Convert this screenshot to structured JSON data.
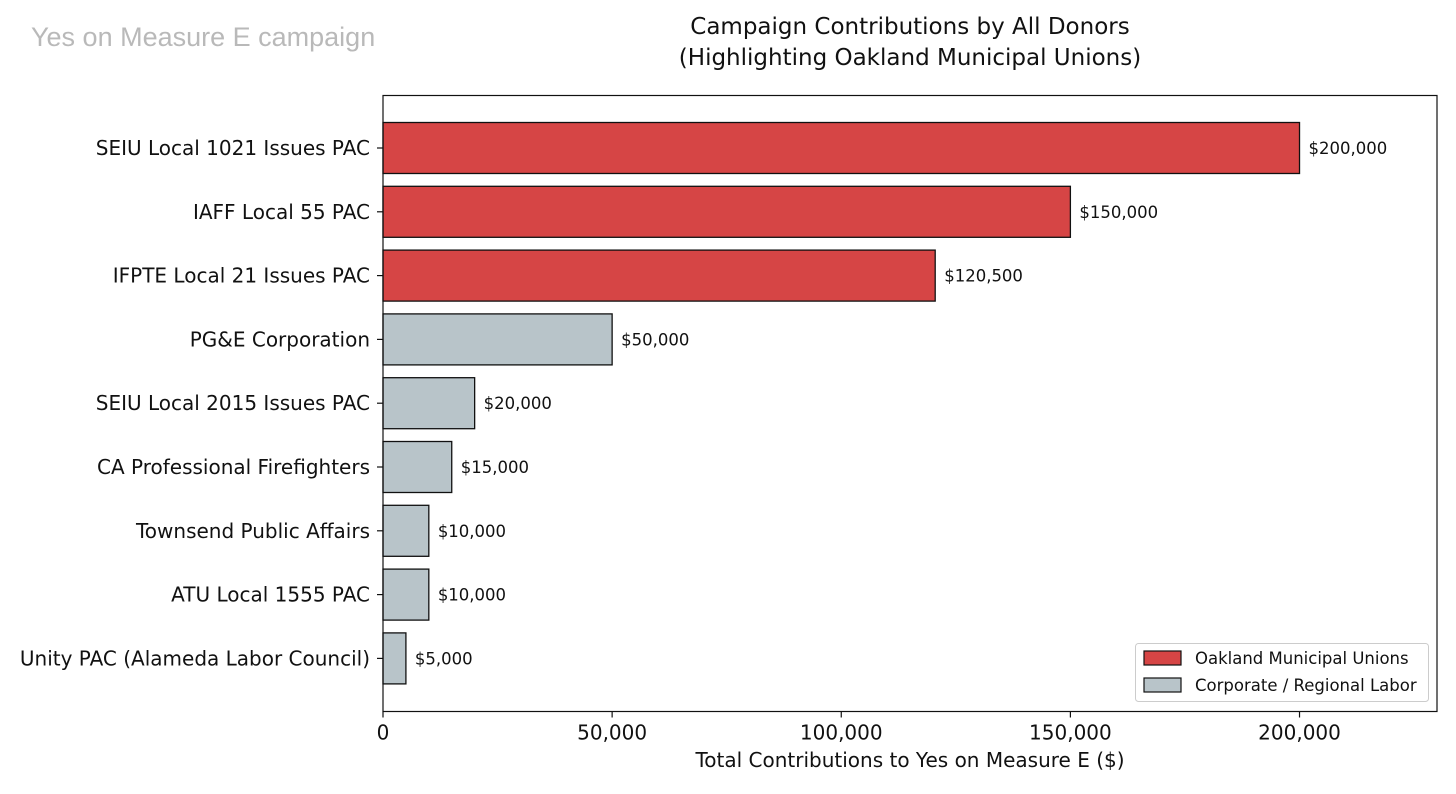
{
  "watermark": "Yes on Measure E campaign",
  "chart_data": {
    "type": "bar",
    "orientation": "horizontal",
    "title": "Campaign Contributions by All Donors",
    "subtitle": "(Highlighting Oakland Municipal Unions)",
    "xlabel": "Total Contributions to Yes on Measure E ($)",
    "ylabel": "",
    "xlim": [
      0,
      230000
    ],
    "xticks": [
      0,
      50000,
      100000,
      150000,
      200000
    ],
    "xtick_labels": [
      "0",
      "50,000",
      "100,000",
      "150,000",
      "200,000"
    ],
    "grid": false,
    "legend_position": "lower-right",
    "categories": [
      "SEIU Local 1021 Issues PAC",
      "IAFF Local 55 PAC",
      "IFPTE Local 21 Issues PAC",
      "PG&E Corporation",
      "SEIU Local 2015 Issues PAC",
      "CA Professional Firefighters",
      "Townsend Public Affairs",
      "ATU Local 1555 PAC",
      "Unity PAC (Alameda Labor Council)"
    ],
    "values": [
      200000,
      150000,
      120500,
      50000,
      20000,
      15000,
      10000,
      10000,
      5000
    ],
    "value_labels": [
      "$200,000",
      "$150,000",
      "$120,500",
      "$50,000",
      "$20,000",
      "$15,000",
      "$10,000",
      "$10,000",
      "$5,000"
    ],
    "groups": [
      0,
      0,
      0,
      1,
      1,
      1,
      1,
      1,
      1
    ],
    "legend": [
      {
        "name": "Oakland Municipal Unions",
        "color": "#d64545"
      },
      {
        "name": "Corporate / Regional Labor",
        "color": "#b8c4c9"
      }
    ]
  }
}
